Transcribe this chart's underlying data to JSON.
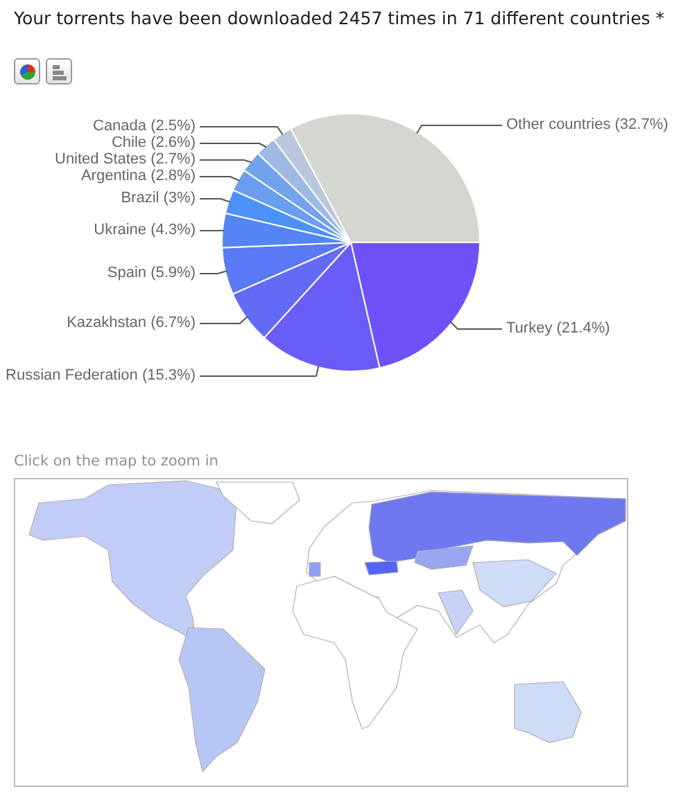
{
  "chart_data": {
    "type": "pie",
    "title": "Your torrents have been downloaded 2457 times in 71 different countries *",
    "categories": [
      "Turkey",
      "Russian Federation",
      "Kazakhstan",
      "Spain",
      "Ukraine",
      "Brazil",
      "Argentina",
      "United States",
      "Chile",
      "Canada",
      "Other countries"
    ],
    "values": [
      21.4,
      15.3,
      6.7,
      5.9,
      4.3,
      3,
      2.8,
      2.7,
      2.6,
      2.5,
      32.7
    ],
    "value_labels": [
      "(21.4%)",
      "(15.3%)",
      "(6.7%)",
      "(5.9%)",
      "(4.3%)",
      "(3%)",
      "(2.8%)",
      "(2.7%)",
      "(2.6%)",
      "(2.5%)",
      "(32.7%)"
    ],
    "colors": [
      "#7050f8",
      "#6a5cf7",
      "#636bf6",
      "#5b78f5",
      "#5585f5",
      "#4c92f6",
      "#6a9ff0",
      "#72a3ec",
      "#a0b9e2",
      "#b8c7dc",
      "#d4d6d0"
    ],
    "annotations": [
      "Click on the map to zoom in"
    ]
  }
}
